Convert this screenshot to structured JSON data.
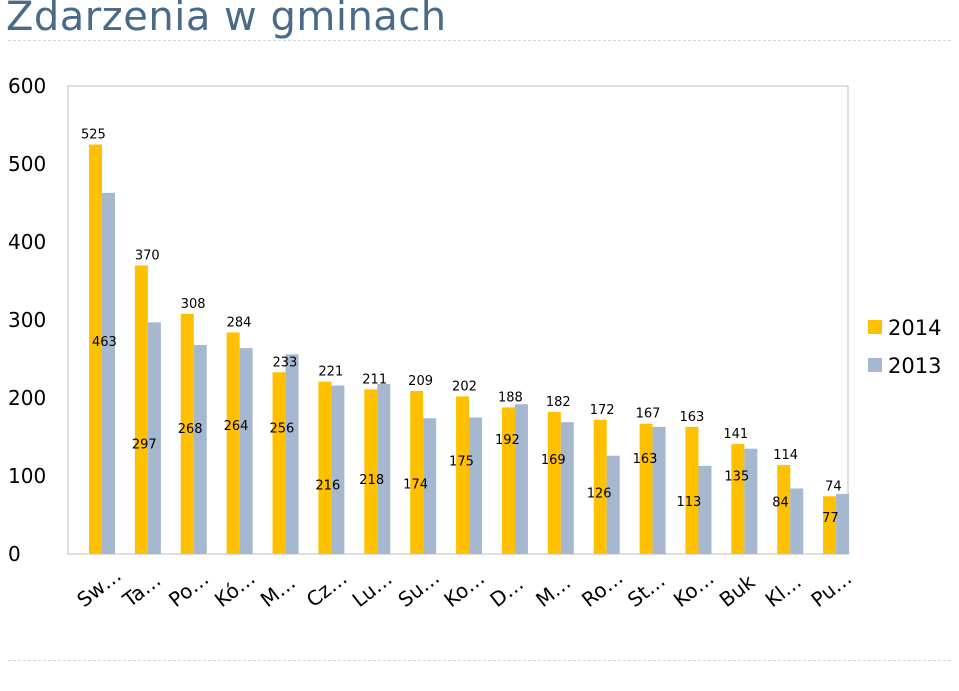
{
  "title": "Zdarzenia w gminach",
  "chart_data": {
    "type": "bar",
    "title": "Zdarzenia w gminach",
    "xlabel": "",
    "ylabel": "",
    "ylim": [
      0,
      600
    ],
    "yticks": [
      0,
      100,
      200,
      300,
      400,
      500,
      600
    ],
    "grid": false,
    "legend_position": "right",
    "categories": [
      "Sw…",
      "Ta…",
      "Po…",
      "Kó…",
      "M…",
      "Cz…",
      "Lu…",
      "Su…",
      "Ko…",
      "D…",
      "M…",
      "Ro…",
      "St…",
      "Ko…",
      "Buk",
      "Kl…",
      "Pu…"
    ],
    "series": [
      {
        "name": "2014",
        "color": "#FFC000",
        "values": [
          525,
          370,
          308,
          284,
          233,
          221,
          211,
          209,
          202,
          188,
          182,
          172,
          167,
          163,
          141,
          114,
          74
        ]
      },
      {
        "name": "2013",
        "color": "#A6B8CF",
        "values": [
          463,
          297,
          268,
          264,
          256,
          216,
          218,
          174,
          175,
          192,
          169,
          126,
          163,
          113,
          135,
          84,
          77
        ]
      }
    ]
  }
}
